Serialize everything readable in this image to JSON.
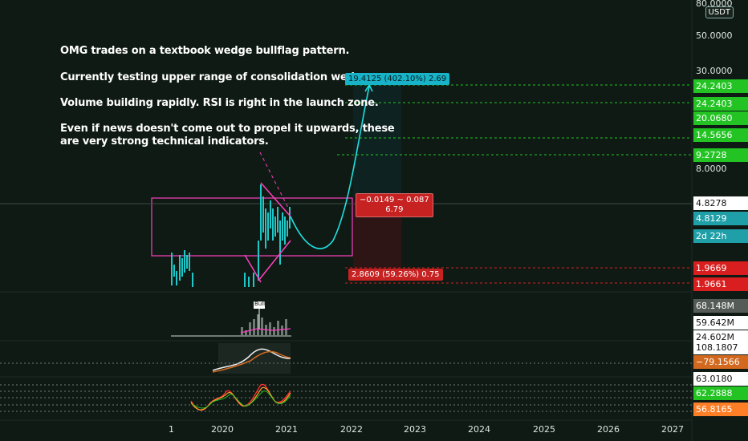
{
  "annotation": {
    "lines": [
      "OMG trades on a textbook wedge bullflag pattern.",
      "Currently testing upper range of consolidation wedge.",
      "Volume building rapidly. RSI is right in the launch zone.",
      "Even if news doesn't come out to propel it upwards, these",
      "are very strong technical indicators."
    ]
  },
  "price_scale": {
    "currency": "USDT",
    "top_value": "80.0000",
    "ticks": [
      "50.0000",
      "30.0000",
      "8.0000"
    ],
    "labels": [
      {
        "text": "24.2403",
        "color": "#22c322"
      },
      {
        "text": "24.2403",
        "color": "#22c322"
      },
      {
        "text": "20.0680",
        "color": "#22c322"
      },
      {
        "text": "14.5656",
        "color": "#22c322"
      },
      {
        "text": "9.2728",
        "color": "#22c322"
      },
      {
        "text": "4.8278",
        "color": "#ffffff"
      },
      {
        "text": "4.8129",
        "color": "#1fa0a8"
      },
      {
        "text": "2d 22h",
        "color": "#1fa0a8"
      },
      {
        "text": "1.9669",
        "color": "#d81e1e"
      },
      {
        "text": "1.9661",
        "color": "#d81e1e"
      }
    ]
  },
  "position_tool": {
    "target_label": "19.4125 (402.10%) 2.69",
    "entry_label_line1": "−0.0149 ~ 0.087",
    "entry_label_line2": "6.79",
    "stop_label": "2.8609 (59.26%) 0.75"
  },
  "volume_pane": {
    "labels": [
      {
        "text": "68.148M",
        "color": "#555b57"
      },
      {
        "text": "59.642M",
        "color": "#ffffff"
      },
      {
        "text": "24.602M",
        "color": "#ffffff"
      }
    ],
    "marker": "Bull"
  },
  "oscillator_pane": {
    "labels": [
      {
        "text": "108.1807",
        "color": "#ffffff"
      },
      {
        "text": "−79.1566",
        "color": "#d2691e"
      }
    ]
  },
  "rsi_pane": {
    "labels": [
      {
        "text": "63.0180",
        "color": "#ffffff"
      },
      {
        "text": "62.2888",
        "color": "#22c322"
      },
      {
        "text": "56.8165",
        "color": "#ff7f27"
      }
    ]
  },
  "time_axis": {
    "labels": [
      "1",
      "2020",
      "2021",
      "2022",
      "2023",
      "2024",
      "2025",
      "2026",
      "2027"
    ]
  },
  "colors": {
    "background": "#0f1a14",
    "up": "#1fc8c8",
    "accent_pink": "#ff3fbf",
    "target_green": "#22c322",
    "stop_red": "#d81e1e"
  }
}
